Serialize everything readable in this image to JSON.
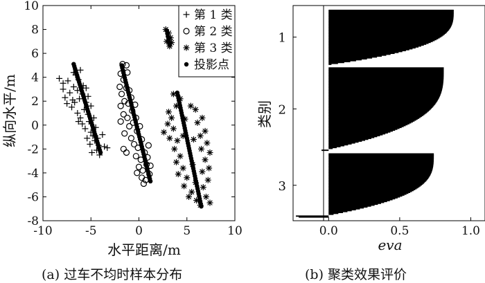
{
  "chart_data": [
    {
      "type": "scatter",
      "caption": "(a) 过车不均时样本分布",
      "xlabel": "水平距离/m",
      "ylabel": "纵向水平/m",
      "xlim": [
        -10,
        10
      ],
      "ylim": [
        -8,
        10
      ],
      "xticks": [
        "-10",
        "-5",
        "0",
        "5",
        "10"
      ],
      "yticks": [
        "-8",
        "-6",
        "-4",
        "-2",
        "0",
        "2",
        "4",
        "6",
        "8",
        "10"
      ],
      "legend_position": "top-right",
      "legend": [
        "第 1 类",
        "第 2 类",
        "第 3 类",
        "投影点"
      ],
      "series": [
        {
          "name": "第 1 类",
          "marker": "plus",
          "points": [
            [
              -8.3,
              3.9
            ],
            [
              -7.9,
              3.5
            ],
            [
              -7.4,
              3.7
            ],
            [
              -7.9,
              3.0
            ],
            [
              -7.7,
              2.3
            ],
            [
              -7.2,
              2.7
            ],
            [
              -7.5,
              1.8
            ],
            [
              -7.0,
              1.5
            ],
            [
              -6.8,
              3.2
            ],
            [
              -6.6,
              4.2
            ],
            [
              -6.3,
              3.8
            ],
            [
              -6.1,
              4.6
            ],
            [
              -6.4,
              2.9
            ],
            [
              -6.2,
              2.2
            ],
            [
              -5.9,
              2.6
            ],
            [
              -5.8,
              3.3
            ],
            [
              -5.7,
              1.3
            ],
            [
              -5.5,
              1.9
            ],
            [
              -5.3,
              0.9
            ],
            [
              -6.1,
              0.6
            ],
            [
              -6.4,
              1.0
            ],
            [
              -5.9,
              0.1
            ],
            [
              -5.6,
              -0.3
            ],
            [
              -5.2,
              0.3
            ],
            [
              -5.0,
              -0.6
            ],
            [
              -5.4,
              -1.1
            ],
            [
              -5.1,
              -1.6
            ],
            [
              -4.8,
              -0.9
            ],
            [
              -4.6,
              -1.3
            ],
            [
              -4.4,
              -2.1
            ],
            [
              -4.2,
              -1.7
            ],
            [
              -4.9,
              -2.3
            ],
            [
              -4.5,
              -0.2
            ],
            [
              -4.7,
              0.6
            ],
            [
              -5.0,
              1.6
            ],
            [
              -5.5,
              3.1
            ],
            [
              -6.8,
              4.4
            ],
            [
              -6.3,
              0.3
            ],
            [
              -3.6,
              -1.8
            ],
            [
              -3.3,
              -1.9
            ],
            [
              -3.8,
              -0.8
            ],
            [
              -4.1,
              -2.5
            ],
            [
              -6.7,
              1.9
            ],
            [
              -5.3,
              2.4
            ],
            [
              -6.9,
              2.1
            ],
            [
              -4.3,
              -1.1
            ]
          ]
        },
        {
          "name": "第 2 类",
          "marker": "circle",
          "points": [
            [
              -1.7,
              5.1
            ],
            [
              -1.3,
              5.0
            ],
            [
              -1.9,
              4.3
            ],
            [
              -1.6,
              3.8
            ],
            [
              -1.2,
              4.4
            ],
            [
              -2.0,
              3.2
            ],
            [
              -1.8,
              2.6
            ],
            [
              -1.3,
              3.1
            ],
            [
              -1.0,
              2.9
            ],
            [
              -1.5,
              2.0
            ],
            [
              -1.9,
              1.6
            ],
            [
              -1.1,
              1.8
            ],
            [
              -0.8,
              2.3
            ],
            [
              -1.6,
              0.9
            ],
            [
              -1.2,
              0.6
            ],
            [
              -0.7,
              1.2
            ],
            [
              -0.4,
              1.7
            ],
            [
              -1.0,
              -0.1
            ],
            [
              -0.6,
              0.2
            ],
            [
              -0.3,
              0.6
            ],
            [
              -1.5,
              -0.7
            ],
            [
              -0.8,
              -1.1
            ],
            [
              -0.2,
              -0.5
            ],
            [
              0.1,
              -0.1
            ],
            [
              -0.5,
              -1.6
            ],
            [
              -0.1,
              -1.9
            ],
            [
              0.3,
              -1.2
            ],
            [
              -1.6,
              -2.0
            ],
            [
              -1.3,
              -2.3
            ],
            [
              -0.3,
              -2.6
            ],
            [
              0.2,
              -2.9
            ],
            [
              0.6,
              -2.3
            ],
            [
              0.9,
              -2.7
            ],
            [
              0.0,
              -3.5
            ],
            [
              0.4,
              -3.8
            ],
            [
              0.8,
              -3.3
            ],
            [
              1.2,
              -3.4
            ],
            [
              0.3,
              -4.4
            ],
            [
              0.7,
              -4.6
            ],
            [
              1.1,
              -4.1
            ],
            [
              0.5,
              -4.9
            ],
            [
              -0.2,
              -4.0
            ],
            [
              -1.9,
              0.3
            ],
            [
              1.0,
              -1.7
            ]
          ]
        },
        {
          "name": "第 3 类",
          "marker": "star",
          "points": [
            [
              2.8,
              8.0
            ],
            [
              3.1,
              7.7
            ],
            [
              3.3,
              7.3
            ],
            [
              2.9,
              7.0
            ],
            [
              3.2,
              6.6
            ],
            [
              3.4,
              6.9
            ],
            [
              3.6,
              2.6
            ],
            [
              4.3,
              2.2
            ],
            [
              3.9,
              1.6
            ],
            [
              3.4,
              0.6
            ],
            [
              3.0,
              0.1
            ],
            [
              3.6,
              -0.3
            ],
            [
              2.6,
              -0.6
            ],
            [
              3.2,
              -1.1
            ],
            [
              4.0,
              -1.3
            ],
            [
              3.7,
              -2.0
            ],
            [
              4.3,
              -2.6
            ],
            [
              3.9,
              -3.1
            ],
            [
              4.6,
              -3.6
            ],
            [
              4.1,
              -4.1
            ],
            [
              5.0,
              -4.4
            ],
            [
              4.7,
              -5.1
            ],
            [
              5.5,
              -5.6
            ],
            [
              5.2,
              -6.0
            ],
            [
              6.0,
              -6.3
            ],
            [
              6.4,
              -6.7
            ],
            [
              7.4,
              -6.5
            ],
            [
              7.0,
              -6.0
            ],
            [
              6.7,
              -5.2
            ],
            [
              7.2,
              -4.6
            ],
            [
              6.6,
              -3.9
            ],
            [
              7.3,
              -3.6
            ],
            [
              6.9,
              -2.9
            ],
            [
              7.4,
              -2.3
            ],
            [
              6.5,
              -2.0
            ],
            [
              7.1,
              -1.5
            ],
            [
              6.4,
              -0.9
            ],
            [
              6.9,
              -0.5
            ],
            [
              6.1,
              0.2
            ],
            [
              6.6,
              0.6
            ],
            [
              5.9,
              1.3
            ],
            [
              5.4,
              1.6
            ],
            [
              4.8,
              0.5
            ],
            [
              5.7,
              -1.2
            ],
            [
              5.6,
              -3.3
            ],
            [
              5.9,
              -4.8
            ],
            [
              4.6,
              -0.9
            ],
            [
              3.1,
              1.1
            ]
          ]
        },
        {
          "name": "投影点",
          "marker": "dot",
          "segments": [
            {
              "from": [
                -6.8,
                5.1
              ],
              "to": [
                -4.0,
                -2.3
              ],
              "n": 40
            },
            {
              "from": [
                -1.8,
                5.0
              ],
              "to": [
                1.2,
                -4.7
              ],
              "n": 48
            },
            {
              "from": [
                2.9,
                7.9
              ],
              "to": [
                3.2,
                6.7
              ],
              "n": 6
            },
            {
              "from": [
                4.0,
                2.7
              ],
              "to": [
                6.5,
                -6.8
              ],
              "n": 46
            }
          ]
        }
      ]
    },
    {
      "type": "bar",
      "orientation": "horizontal",
      "caption": "(b) 聚类效果评价",
      "xlabel": "eva",
      "ylabel": "类别",
      "xlim": [
        -0.25,
        1.1
      ],
      "xticks": [
        "0.0",
        "0.5",
        "1.0"
      ],
      "categories": [
        "1",
        "2",
        "3"
      ],
      "groups": [
        {
          "name": "1",
          "count": 60,
          "max": 0.88,
          "min": 0.02,
          "negatives": []
        },
        {
          "name": "2",
          "count": 90,
          "max": 0.81,
          "min": 0.0,
          "negatives": [
            -0.05
          ]
        },
        {
          "name": "3",
          "count": 68,
          "max": 0.74,
          "min": 0.0,
          "negatives": [
            -0.23,
            -0.21
          ]
        }
      ]
    }
  ]
}
